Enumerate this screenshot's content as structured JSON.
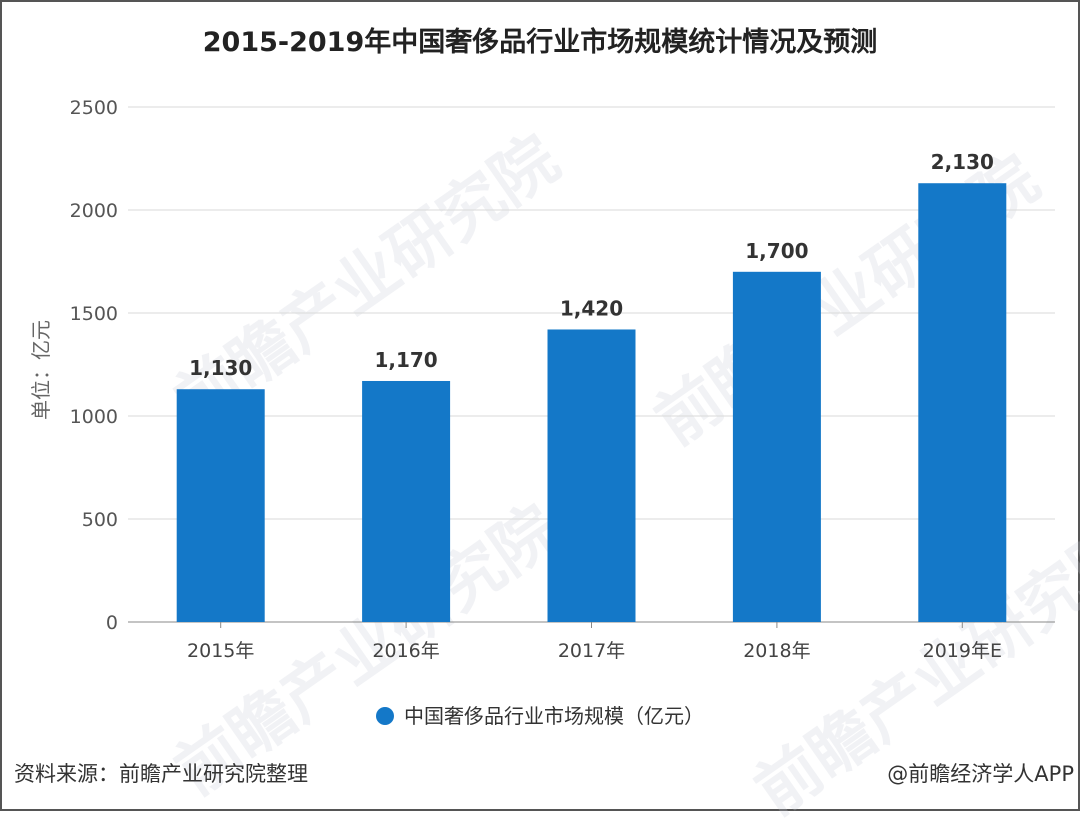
{
  "chart_data": {
    "type": "bar",
    "title": "2015-2019年中国奢侈品行业市场规模统计情况及预测",
    "categories": [
      "2015年",
      "2016年",
      "2017年",
      "2018年",
      "2019年E"
    ],
    "series": [
      {
        "name": "中国奢侈品行业市场规模（亿元）",
        "values": [
          1130,
          1170,
          1420,
          1700,
          2130
        ],
        "labels": [
          "1,130",
          "1,170",
          "1,420",
          "1,700",
          "2,130"
        ],
        "color": "#1478c8"
      }
    ],
    "ylabel": "单位：亿元",
    "ylim": [
      0,
      2500
    ],
    "yticks": [
      "0",
      "500",
      "1000",
      "1500",
      "2000",
      "2500"
    ],
    "grid": true,
    "legend_position": "bottom"
  },
  "footer": {
    "source": "资料来源：前瞻产业研究院整理",
    "credit": "@前瞻经济学人APP"
  },
  "watermark": "前瞻产业研究院"
}
